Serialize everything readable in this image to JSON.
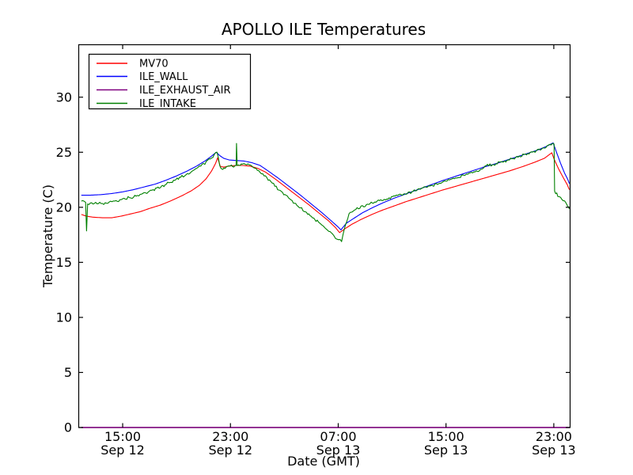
{
  "window": {
    "background": "#ffffff"
  },
  "chart_data": {
    "type": "line",
    "title": "APOLLO ILE Temperatures",
    "xlabel": "Date (GMT)",
    "ylabel": "Temperature (C)",
    "grid": false,
    "legend_position": "upper left",
    "x_unit": "hours since Sep 12 00:00 GMT",
    "xlim": [
      11.71,
      48.18
    ],
    "ylim": [
      0,
      34.8
    ],
    "yticks": [
      0,
      5,
      10,
      15,
      20,
      25,
      30
    ],
    "xticks": [
      {
        "t": 15,
        "time": "15:00",
        "date": "Sep 12"
      },
      {
        "t": 23,
        "time": "23:00",
        "date": "Sep 12"
      },
      {
        "t": 31,
        "time": "07:00",
        "date": "Sep 13"
      },
      {
        "t": 39,
        "time": "15:00",
        "date": "Sep 13"
      },
      {
        "t": 47,
        "time": "23:00",
        "date": "Sep 13"
      }
    ],
    "series": [
      {
        "name": "MV70",
        "color": "#ff0000",
        "noise": 0,
        "points": [
          [
            11.93,
            19.35
          ],
          [
            12.3,
            19.2
          ],
          [
            12.8,
            19.1
          ],
          [
            13.5,
            19.05
          ],
          [
            14.2,
            19.05
          ],
          [
            14.9,
            19.2
          ],
          [
            15.6,
            19.4
          ],
          [
            16.3,
            19.6
          ],
          [
            17.0,
            19.9
          ],
          [
            17.8,
            20.2
          ],
          [
            18.6,
            20.6
          ],
          [
            19.4,
            21.05
          ],
          [
            20.1,
            21.5
          ],
          [
            20.7,
            22.0
          ],
          [
            21.2,
            22.6
          ],
          [
            21.6,
            23.3
          ],
          [
            21.9,
            24.0
          ],
          [
            22.05,
            24.5
          ],
          [
            22.25,
            23.7
          ],
          [
            22.5,
            23.65
          ],
          [
            22.9,
            23.75
          ],
          [
            23.4,
            23.8
          ],
          [
            23.9,
            23.8
          ],
          [
            24.4,
            23.75
          ],
          [
            25.0,
            23.55
          ],
          [
            25.6,
            23.2
          ],
          [
            26.4,
            22.5
          ],
          [
            27.2,
            21.75
          ],
          [
            28.0,
            21.0
          ],
          [
            28.8,
            20.25
          ],
          [
            29.6,
            19.45
          ],
          [
            30.3,
            18.75
          ],
          [
            30.8,
            18.15
          ],
          [
            31.1,
            17.7
          ],
          [
            31.5,
            18.05
          ],
          [
            32.0,
            18.45
          ],
          [
            32.7,
            18.9
          ],
          [
            33.5,
            19.35
          ],
          [
            34.3,
            19.75
          ],
          [
            35.1,
            20.1
          ],
          [
            36.0,
            20.5
          ],
          [
            36.9,
            20.85
          ],
          [
            37.8,
            21.2
          ],
          [
            38.7,
            21.55
          ],
          [
            39.7,
            21.9
          ],
          [
            40.7,
            22.25
          ],
          [
            41.7,
            22.6
          ],
          [
            42.7,
            22.95
          ],
          [
            43.7,
            23.3
          ],
          [
            44.7,
            23.7
          ],
          [
            45.6,
            24.1
          ],
          [
            46.3,
            24.45
          ],
          [
            46.85,
            24.95
          ],
          [
            47.05,
            24.3
          ],
          [
            47.35,
            23.5
          ],
          [
            47.7,
            22.7
          ],
          [
            48.0,
            22.05
          ],
          [
            48.15,
            21.6
          ]
        ]
      },
      {
        "name": "ILE_WALL",
        "color": "#0000ff",
        "noise": 0,
        "points": [
          [
            11.93,
            21.1
          ],
          [
            12.6,
            21.1
          ],
          [
            13.4,
            21.15
          ],
          [
            14.2,
            21.25
          ],
          [
            15.0,
            21.4
          ],
          [
            15.8,
            21.6
          ],
          [
            16.6,
            21.85
          ],
          [
            17.4,
            22.1
          ],
          [
            18.2,
            22.45
          ],
          [
            19.0,
            22.85
          ],
          [
            19.8,
            23.3
          ],
          [
            20.5,
            23.75
          ],
          [
            21.1,
            24.2
          ],
          [
            21.6,
            24.65
          ],
          [
            21.95,
            25.0
          ],
          [
            22.2,
            24.7
          ],
          [
            22.5,
            24.45
          ],
          [
            22.9,
            24.3
          ],
          [
            23.4,
            24.25
          ],
          [
            24.0,
            24.2
          ],
          [
            24.6,
            24.05
          ],
          [
            25.2,
            23.8
          ],
          [
            25.8,
            23.3
          ],
          [
            26.6,
            22.6
          ],
          [
            27.4,
            21.85
          ],
          [
            28.2,
            21.1
          ],
          [
            29.0,
            20.3
          ],
          [
            29.8,
            19.5
          ],
          [
            30.5,
            18.75
          ],
          [
            31.0,
            18.2
          ],
          [
            31.2,
            17.95
          ],
          [
            31.6,
            18.55
          ],
          [
            32.1,
            18.95
          ],
          [
            32.8,
            19.5
          ],
          [
            33.6,
            20.0
          ],
          [
            34.4,
            20.45
          ],
          [
            35.2,
            20.85
          ],
          [
            36.1,
            21.25
          ],
          [
            37.0,
            21.65
          ],
          [
            37.9,
            22.05
          ],
          [
            38.8,
            22.45
          ],
          [
            39.8,
            22.85
          ],
          [
            40.8,
            23.25
          ],
          [
            41.8,
            23.65
          ],
          [
            42.8,
            24.0
          ],
          [
            43.8,
            24.4
          ],
          [
            44.8,
            24.8
          ],
          [
            45.7,
            25.15
          ],
          [
            46.4,
            25.5
          ],
          [
            46.95,
            25.85
          ],
          [
            47.2,
            25.0
          ],
          [
            47.5,
            24.0
          ],
          [
            47.8,
            23.1
          ],
          [
            48.05,
            22.5
          ],
          [
            48.15,
            22.15
          ]
        ]
      },
      {
        "name": "ILE_EXHAUST_AIR",
        "color": "#800080",
        "noise": 0,
        "points": [
          [
            11.93,
            0.0
          ],
          [
            48.15,
            0.0
          ]
        ]
      },
      {
        "name": "ILE_INTAKE",
        "color": "#008000",
        "noise": 0.09,
        "points": [
          [
            11.93,
            20.55
          ],
          [
            12.25,
            20.45
          ],
          [
            12.32,
            17.85
          ],
          [
            12.4,
            20.35
          ],
          [
            13.0,
            20.35
          ],
          [
            13.6,
            20.35
          ],
          [
            14.2,
            20.5
          ],
          [
            14.9,
            20.7
          ],
          [
            15.6,
            20.9
          ],
          [
            16.3,
            21.15
          ],
          [
            17.0,
            21.45
          ],
          [
            17.8,
            21.85
          ],
          [
            18.6,
            22.3
          ],
          [
            19.4,
            22.8
          ],
          [
            20.1,
            23.25
          ],
          [
            20.7,
            23.7
          ],
          [
            21.2,
            24.1
          ],
          [
            21.7,
            24.6
          ],
          [
            22.0,
            25.05
          ],
          [
            22.2,
            23.9
          ],
          [
            22.35,
            23.5
          ],
          [
            22.6,
            23.65
          ],
          [
            22.9,
            23.75
          ],
          [
            23.42,
            23.8
          ],
          [
            23.45,
            25.8
          ],
          [
            23.5,
            23.8
          ],
          [
            23.9,
            23.95
          ],
          [
            24.4,
            23.85
          ],
          [
            24.9,
            23.55
          ],
          [
            25.3,
            23.1
          ],
          [
            26.0,
            22.3
          ],
          [
            26.6,
            21.6
          ],
          [
            27.4,
            20.75
          ],
          [
            28.2,
            19.95
          ],
          [
            29.0,
            19.15
          ],
          [
            29.8,
            18.4
          ],
          [
            30.4,
            17.7
          ],
          [
            30.9,
            17.15
          ],
          [
            31.25,
            16.9
          ],
          [
            31.45,
            18.0
          ],
          [
            31.8,
            19.4
          ],
          [
            32.3,
            19.8
          ],
          [
            33.0,
            20.15
          ],
          [
            33.8,
            20.5
          ],
          [
            34.6,
            20.8
          ],
          [
            35.4,
            21.05
          ],
          [
            36.2,
            21.3
          ],
          [
            37.0,
            21.6
          ],
          [
            37.9,
            21.95
          ],
          [
            38.8,
            22.3
          ],
          [
            39.8,
            22.7
          ],
          [
            40.8,
            23.1
          ],
          [
            41.6,
            23.4
          ],
          [
            41.9,
            23.75
          ],
          [
            42.8,
            24.0
          ],
          [
            43.8,
            24.35
          ],
          [
            44.8,
            24.75
          ],
          [
            45.7,
            25.15
          ],
          [
            46.4,
            25.5
          ],
          [
            46.9,
            25.8
          ],
          [
            47.02,
            25.75
          ],
          [
            47.06,
            21.5
          ],
          [
            47.3,
            21.1
          ],
          [
            47.6,
            20.7
          ],
          [
            47.9,
            20.4
          ],
          [
            48.1,
            20.0
          ],
          [
            48.15,
            19.85
          ]
        ]
      }
    ]
  }
}
